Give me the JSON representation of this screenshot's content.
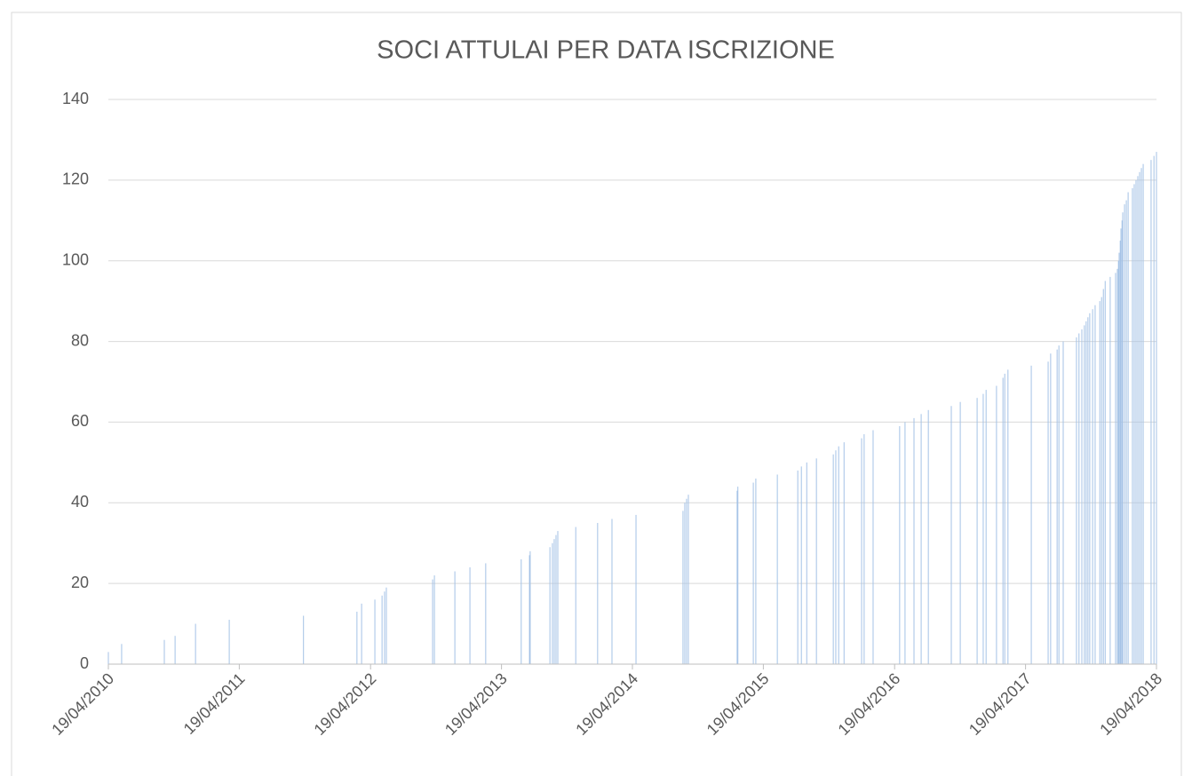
{
  "chart_data": {
    "type": "bar",
    "title": "SOCI ATTULAI PER DATA ISCRIZIONE",
    "color": "#a4c2e6",
    "grid": true,
    "xlim": [
      "2010-04-19",
      "2018-04-19"
    ],
    "xticks": [
      {
        "value": "2010-04-19",
        "label": "19/04/2010"
      },
      {
        "value": "2011-04-19",
        "label": "19/04/2011"
      },
      {
        "value": "2012-04-19",
        "label": "19/04/2012"
      },
      {
        "value": "2013-04-19",
        "label": "19/04/2013"
      },
      {
        "value": "2014-04-19",
        "label": "19/04/2014"
      },
      {
        "value": "2015-04-19",
        "label": "19/04/2015"
      },
      {
        "value": "2016-04-19",
        "label": "19/04/2016"
      },
      {
        "value": "2017-04-19",
        "label": "19/04/2017"
      },
      {
        "value": "2018-04-19",
        "label": "19/04/2018"
      }
    ],
    "ylim": [
      0,
      140
    ],
    "yticks": [
      0,
      20,
      40,
      60,
      80,
      100,
      120,
      140
    ],
    "x": [
      "2010-04-19",
      "2010-05-26",
      "2010-09-22",
      "2010-10-22",
      "2010-12-18",
      "2011-03-22",
      "2011-10-15",
      "2012-03-12",
      "2012-03-25",
      "2012-05-01",
      "2012-05-21",
      "2012-05-28",
      "2012-06-02",
      "2012-10-09",
      "2012-10-14",
      "2012-12-10",
      "2013-01-21",
      "2013-03-06",
      "2013-06-13",
      "2013-07-06",
      "2013-07-08",
      "2013-09-01",
      "2013-09-08",
      "2013-09-13",
      "2013-09-18",
      "2013-09-23",
      "2013-11-12",
      "2014-01-12",
      "2014-02-21",
      "2014-04-29",
      "2014-09-07",
      "2014-09-12",
      "2014-09-17",
      "2014-09-22",
      "2015-02-05",
      "2015-02-07",
      "2015-03-22",
      "2015-03-29",
      "2015-05-28",
      "2015-07-24",
      "2015-08-03",
      "2015-08-18",
      "2015-09-14",
      "2015-10-31",
      "2015-11-07",
      "2015-11-15",
      "2015-11-30",
      "2016-01-18",
      "2016-01-25",
      "2016-02-19",
      "2016-05-03",
      "2016-05-18",
      "2016-06-12",
      "2016-07-02",
      "2016-07-22",
      "2016-09-24",
      "2016-10-19",
      "2016-12-05",
      "2016-12-22",
      "2016-12-30",
      "2017-01-28",
      "2017-02-15",
      "2017-02-20",
      "2017-03-01",
      "2017-05-05",
      "2017-06-21",
      "2017-06-28",
      "2017-07-16",
      "2017-07-21",
      "2017-08-02",
      "2017-09-08",
      "2017-09-15",
      "2017-09-23",
      "2017-09-30",
      "2017-10-05",
      "2017-10-10",
      "2017-10-15",
      "2017-10-23",
      "2017-10-30",
      "2017-11-12",
      "2017-11-17",
      "2017-11-22",
      "2017-11-27",
      "2017-12-11",
      "2017-12-26",
      "2017-12-31",
      "2018-01-03",
      "2018-01-05",
      "2018-01-08",
      "2018-01-10",
      "2018-01-13",
      "2018-01-15",
      "2018-01-20",
      "2018-01-25",
      "2018-01-30",
      "2018-02-11",
      "2018-02-16",
      "2018-02-21",
      "2018-02-26",
      "2018-03-03",
      "2018-03-08",
      "2018-03-13",
      "2018-04-04",
      "2018-04-12",
      "2018-04-19"
    ],
    "values": [
      3,
      5,
      6,
      7,
      10,
      11,
      12,
      13,
      15,
      16,
      17,
      18,
      19,
      21,
      22,
      23,
      24,
      25,
      26,
      27,
      28,
      29,
      30,
      31,
      32,
      33,
      34,
      35,
      36,
      37,
      38,
      40,
      41,
      42,
      43,
      44,
      45,
      46,
      47,
      48,
      49,
      50,
      51,
      52,
      53,
      54,
      55,
      56,
      57,
      58,
      59,
      60,
      61,
      62,
      63,
      64,
      65,
      66,
      67,
      68,
      69,
      71,
      72,
      73,
      74,
      75,
      77,
      78,
      79,
      80,
      81,
      82,
      83,
      84,
      85,
      86,
      87,
      88,
      89,
      90,
      91,
      93,
      95,
      96,
      97,
      98,
      100,
      102,
      105,
      108,
      110,
      112,
      114,
      115,
      117,
      118,
      119,
      120,
      121,
      122,
      123,
      124,
      125,
      126,
      127
    ]
  }
}
